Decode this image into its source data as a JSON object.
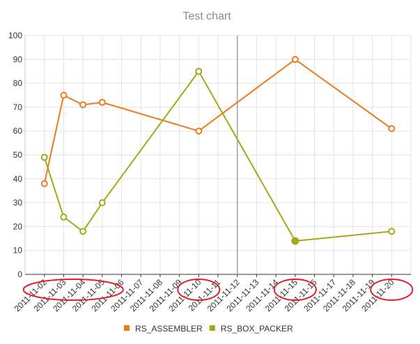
{
  "chart_data": {
    "type": "line",
    "title": "Test chart",
    "xlabel": "",
    "ylabel": "",
    "ylim": [
      0,
      100
    ],
    "yticks": [
      0,
      10,
      20,
      30,
      40,
      50,
      60,
      70,
      80,
      90,
      100
    ],
    "xlim": [
      "2011-11-01",
      "2011-11-21"
    ],
    "xticks": [
      "2011-11-02",
      "2011-11-03",
      "2011-11-04",
      "2011-11-05",
      "2011-11-06",
      "2011-11-07",
      "2011-11-08",
      "2011-11-09",
      "2011-11-10",
      "2011-11-11",
      "2011-11-12",
      "2011-11-13",
      "2011-11-14",
      "2011-11-15",
      "2011-11-16",
      "2011-11-17",
      "2011-11-18",
      "2011-11-19",
      "2011-11-20"
    ],
    "grid": true,
    "legend_position": "bottom",
    "crosshair_x": "2011-11-12",
    "series": [
      {
        "name": "RS_ASSEMBLER",
        "color": "#f07a1a",
        "points": [
          {
            "x": "2011-11-02",
            "y": 38
          },
          {
            "x": "2011-11-03",
            "y": 75
          },
          {
            "x": "2011-11-04",
            "y": 71
          },
          {
            "x": "2011-11-05",
            "y": 72
          },
          {
            "x": "2011-11-10",
            "y": 60
          },
          {
            "x": "2011-11-15",
            "y": 90
          },
          {
            "x": "2011-11-20",
            "y": 61
          }
        ]
      },
      {
        "name": "RS_BOX_PACKER",
        "color": "#a3a916",
        "points": [
          {
            "x": "2011-11-02",
            "y": 49
          },
          {
            "x": "2011-11-03",
            "y": 24
          },
          {
            "x": "2011-11-04",
            "y": 18
          },
          {
            "x": "2011-11-05",
            "y": 30
          },
          {
            "x": "2011-11-10",
            "y": 85
          },
          {
            "x": "2011-11-15",
            "y": 14
          },
          {
            "x": "2011-11-20",
            "y": 18
          }
        ]
      }
    ],
    "highlighted_point": {
      "series": "RS_BOX_PACKER",
      "x": "2011-11-15"
    },
    "annotation_circles": [
      {
        "x_from": "2011-11-02",
        "x_to": "2011-11-05",
        "color": "#e0202a"
      },
      {
        "x_from": "2011-11-10",
        "x_to": "2011-11-10",
        "color": "#e0202a"
      },
      {
        "x_from": "2011-11-15",
        "x_to": "2011-11-15",
        "color": "#e0202a"
      },
      {
        "x_from": "2011-11-20",
        "x_to": "2011-11-20",
        "color": "#e0202a"
      }
    ]
  }
}
